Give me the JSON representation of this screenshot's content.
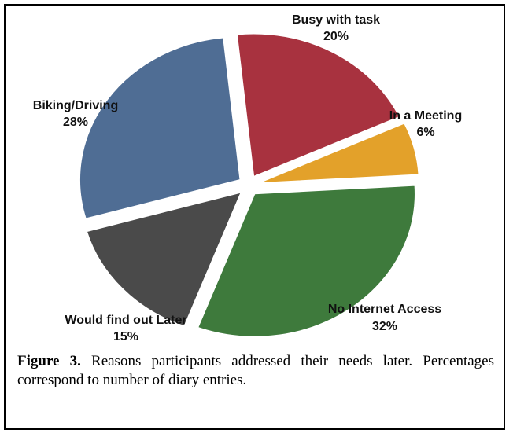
{
  "chart_data": {
    "type": "pie",
    "slices": [
      {
        "label": "Busy with task",
        "value": 20,
        "pct_text": "20%",
        "color": "#a8323f"
      },
      {
        "label": "In a Meeting",
        "value": 6,
        "pct_text": "6%",
        "color": "#e3a12a"
      },
      {
        "label": "No Internet Access",
        "value": 32,
        "pct_text": "32%",
        "color": "#3e7a3c"
      },
      {
        "label": "Would find out Later",
        "value": 15,
        "pct_text": "15%",
        "color": "#4a4a4a"
      },
      {
        "label": "Biking/Driving",
        "value": 28,
        "pct_text": "28%",
        "color": "#4f6d94"
      }
    ]
  },
  "caption": {
    "label": "Figure 3.",
    "text": "Reasons participants addressed their needs later. Percentages correspond to number of diary entries."
  }
}
